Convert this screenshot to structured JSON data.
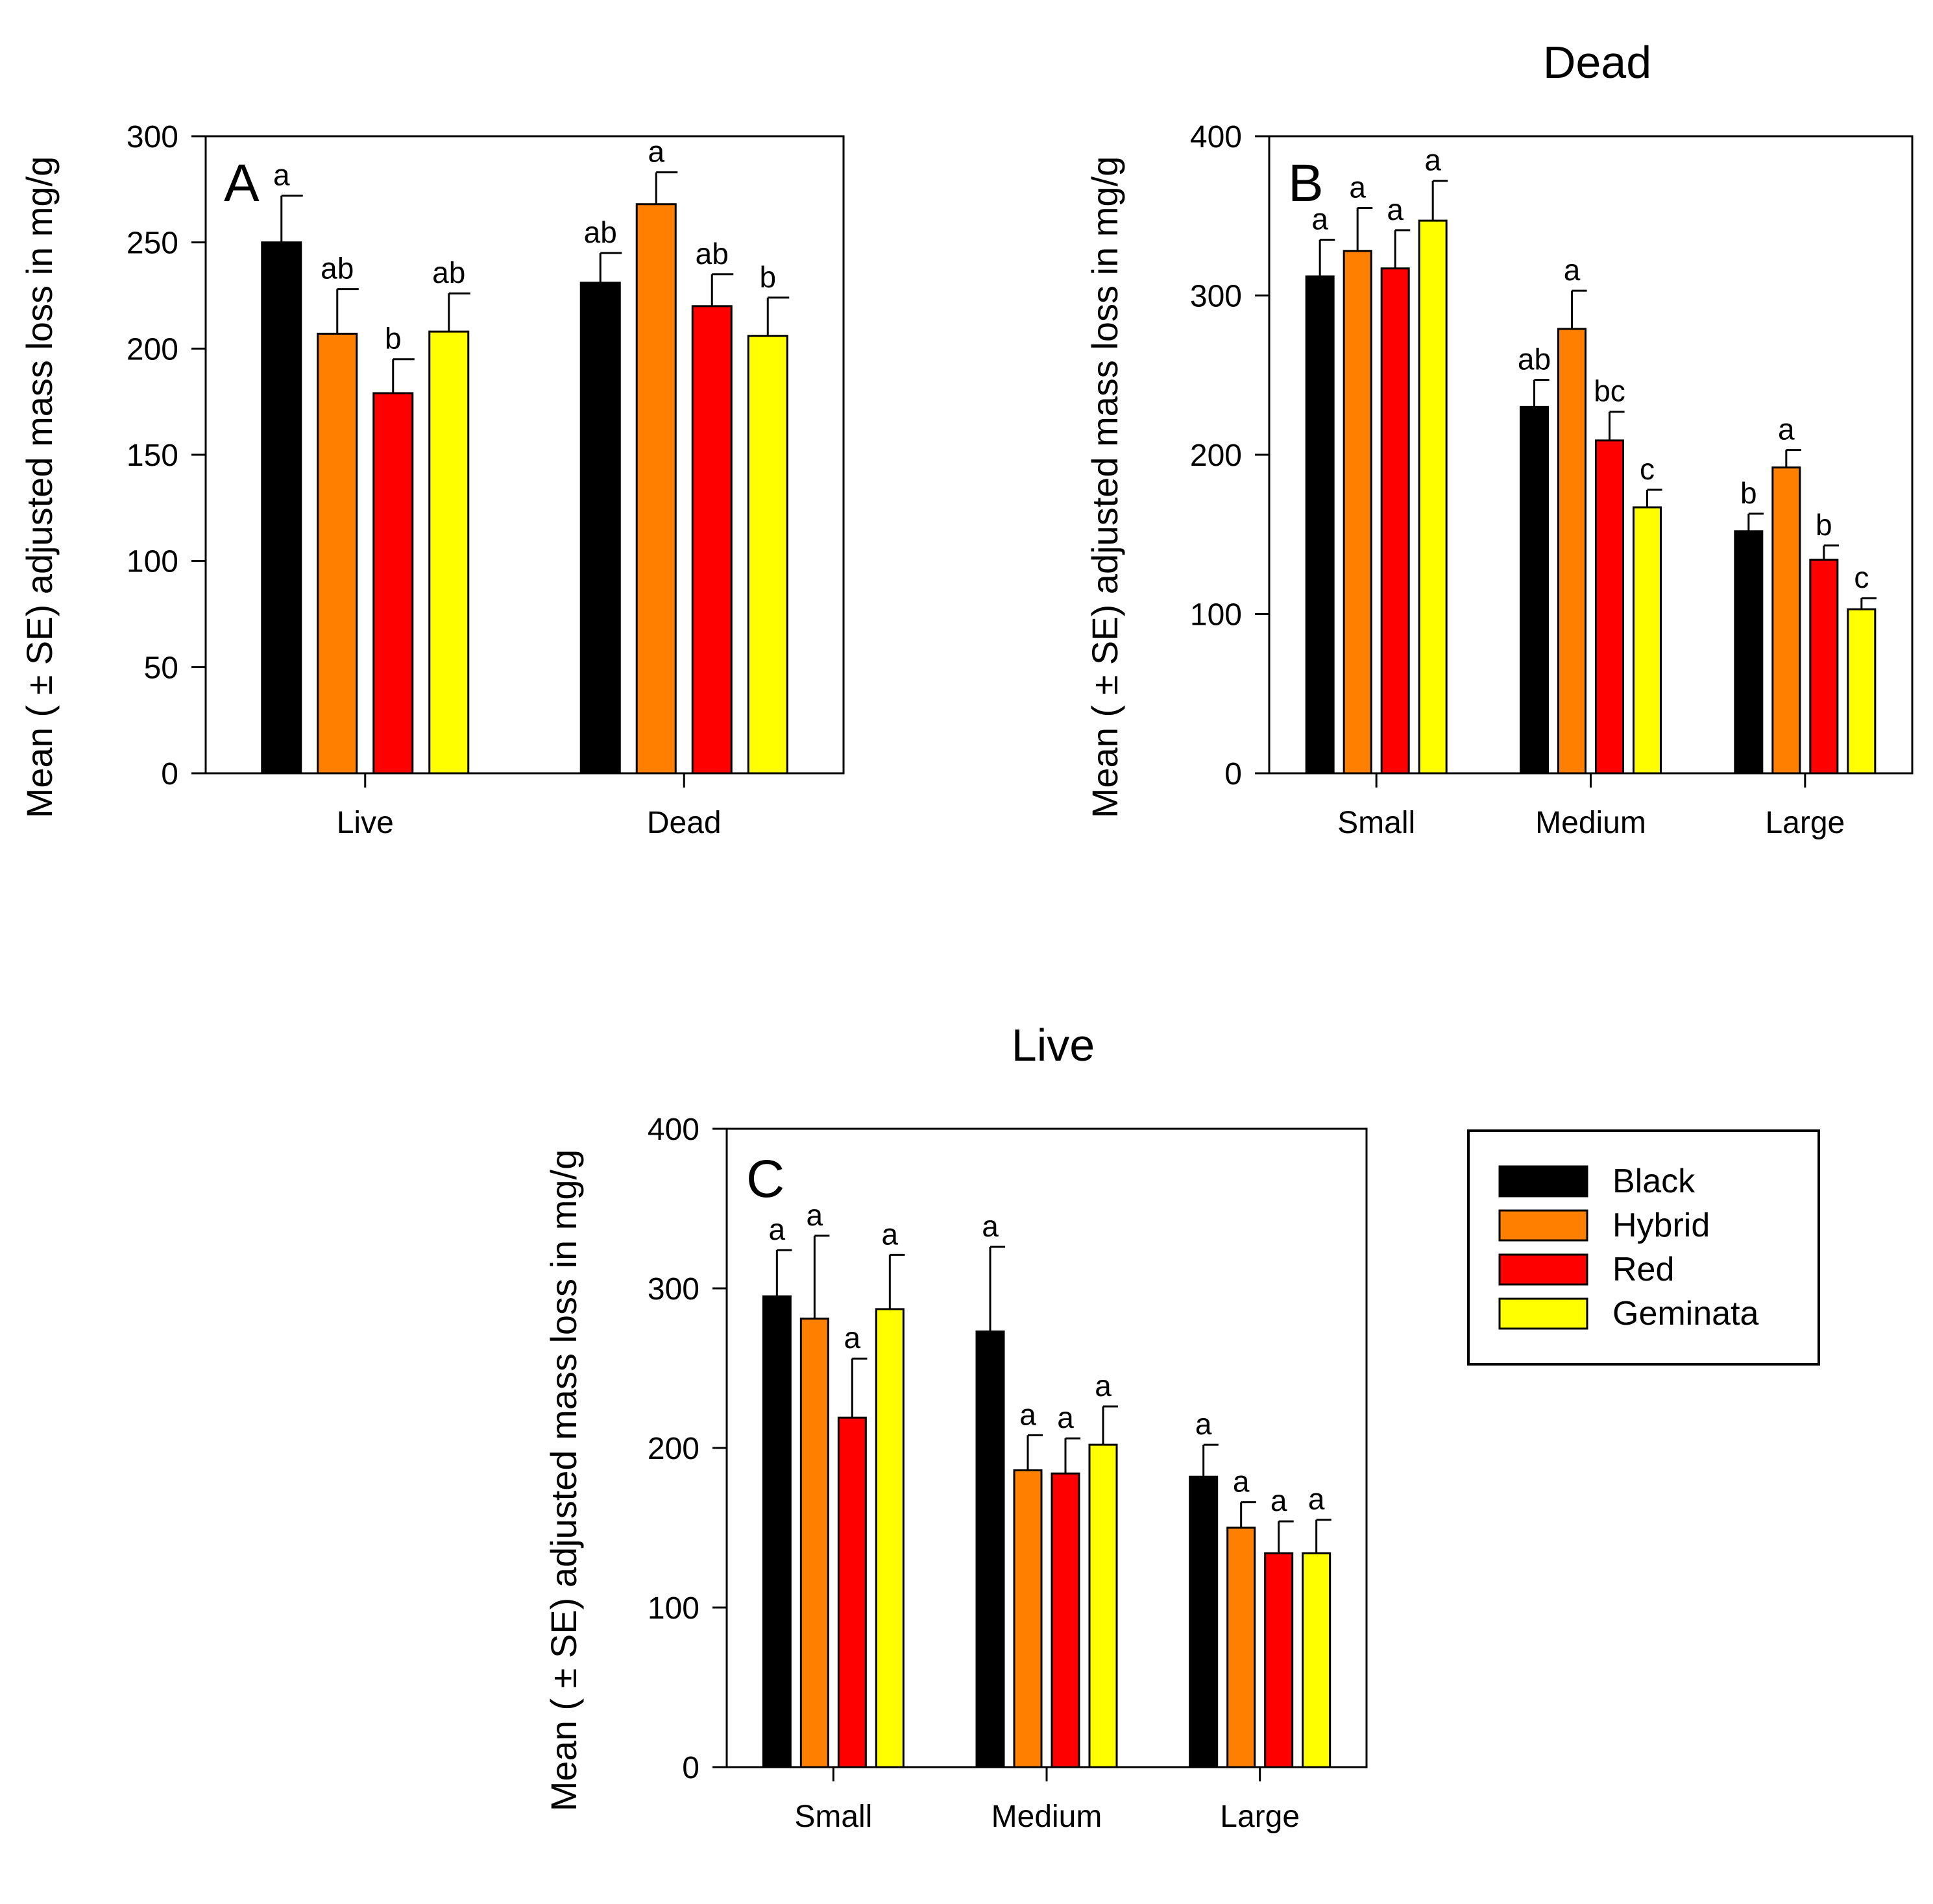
{
  "legend": {
    "entries": [
      {
        "name": "Black",
        "color": "#000000"
      },
      {
        "name": "Hybrid",
        "color": "#ff8000"
      },
      {
        "name": "Red",
        "color": "#ff0000"
      },
      {
        "name": "Geminata",
        "color": "#ffff00"
      }
    ]
  },
  "chart_data": [
    {
      "id": "A",
      "type": "bar",
      "panel_label": "A",
      "title": "",
      "xlabel": "",
      "ylabel": "Mean ( ± SE) adjusted mass loss in mg/g",
      "ylim": [
        0,
        300
      ],
      "yticks": [
        0,
        50,
        100,
        150,
        200,
        250,
        300
      ],
      "categories": [
        "Live",
        "Dead"
      ],
      "series": [
        {
          "name": "Black",
          "values": [
            250,
            231
          ],
          "se": [
            22,
            14
          ],
          "letters": [
            "a",
            "ab"
          ]
        },
        {
          "name": "Hybrid",
          "values": [
            207,
            268
          ],
          "se": [
            21,
            15
          ],
          "letters": [
            "ab",
            "a"
          ]
        },
        {
          "name": "Red",
          "values": [
            179,
            220
          ],
          "se": [
            16,
            15
          ],
          "letters": [
            "b",
            "ab"
          ]
        },
        {
          "name": "Geminata",
          "values": [
            208,
            206
          ],
          "se": [
            18,
            18
          ],
          "letters": [
            "ab",
            "b"
          ]
        }
      ]
    },
    {
      "id": "B",
      "type": "bar",
      "panel_label": "B",
      "title": "Dead",
      "xlabel": "",
      "ylabel": "Mean ( ± SE) adjusted mass loss in mg/g",
      "ylim": [
        0,
        400
      ],
      "yticks": [
        0,
        100,
        200,
        300,
        400
      ],
      "categories": [
        "Small",
        "Medium",
        "Large"
      ],
      "series": [
        {
          "name": "Black",
          "values": [
            312,
            230,
            152
          ],
          "se": [
            23,
            17,
            11
          ],
          "letters": [
            "a",
            "ab",
            "b"
          ]
        },
        {
          "name": "Hybrid",
          "values": [
            328,
            279,
            192
          ],
          "se": [
            27,
            24,
            11
          ],
          "letters": [
            "a",
            "a",
            "a"
          ]
        },
        {
          "name": "Red",
          "values": [
            317,
            209,
            134
          ],
          "se": [
            24,
            18,
            9
          ],
          "letters": [
            "a",
            "bc",
            "b"
          ]
        },
        {
          "name": "Geminata",
          "values": [
            347,
            167,
            103
          ],
          "se": [
            25,
            11,
            7
          ],
          "letters": [
            "a",
            "c",
            "c"
          ]
        }
      ]
    },
    {
      "id": "C",
      "type": "bar",
      "panel_label": "C",
      "title": "Live",
      "xlabel": "",
      "ylabel": "Mean ( ± SE) adjusted mass loss in mg/g",
      "ylim": [
        0,
        400
      ],
      "yticks": [
        0,
        100,
        200,
        300,
        400
      ],
      "categories": [
        "Small",
        "Medium",
        "Large"
      ],
      "series": [
        {
          "name": "Black",
          "values": [
            295,
            273,
            182
          ],
          "se": [
            29,
            53,
            20
          ],
          "letters": [
            "a",
            "a",
            "a"
          ]
        },
        {
          "name": "Hybrid",
          "values": [
            281,
            186,
            150
          ],
          "se": [
            52,
            22,
            16
          ],
          "letters": [
            "a",
            "a",
            "a"
          ]
        },
        {
          "name": "Red",
          "values": [
            219,
            184,
            134
          ],
          "se": [
            37,
            22,
            20
          ],
          "letters": [
            "a",
            "a",
            "a"
          ]
        },
        {
          "name": "Geminata",
          "values": [
            287,
            202,
            134
          ],
          "se": [
            34,
            24,
            21
          ],
          "letters": [
            "a",
            "a",
            "a"
          ]
        }
      ]
    }
  ]
}
